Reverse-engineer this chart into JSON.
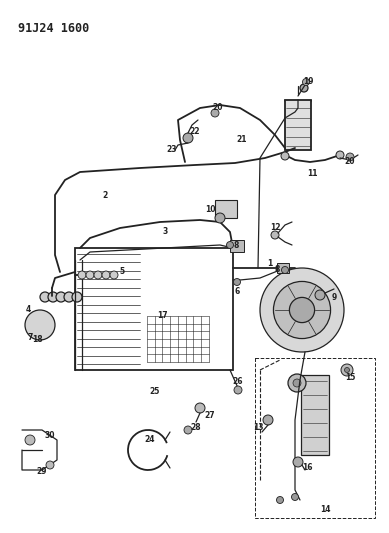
{
  "title": "91J24 1600",
  "bg_color": "#ffffff",
  "line_color": "#222222",
  "fig_width": 3.89,
  "fig_height": 5.33,
  "dpi": 100
}
